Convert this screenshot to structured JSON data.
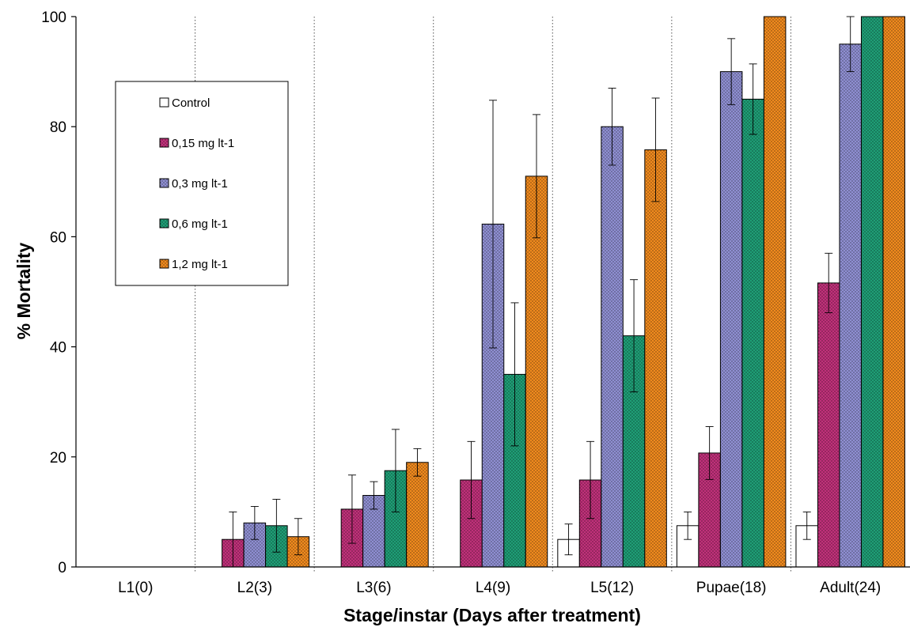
{
  "chart_data": {
    "type": "bar",
    "title": "",
    "xlabel": "Stage/instar (Days after treatment)",
    "ylabel": "% Mortality",
    "ylim": [
      0,
      100
    ],
    "yticks": [
      0,
      20,
      40,
      60,
      80,
      100
    ],
    "grid": "vertical dotted separators between categories",
    "legend_position": "upper-left",
    "categories": [
      "L1(0)",
      "L2(3)",
      "L3(6)",
      "L4(9)",
      "L5(12)",
      "Pupae(18)",
      "Adult(24)"
    ],
    "series": [
      {
        "name": "Control",
        "color": "#ffffff",
        "pattern": "none",
        "values": [
          0,
          0,
          0,
          0,
          5,
          7.5,
          7.5
        ],
        "errors": [
          0,
          0,
          0,
          0,
          2.8,
          2.5,
          2.5
        ]
      },
      {
        "name": "0,15 mg lt-1",
        "color": "#c0317a",
        "pattern": "dots",
        "values": [
          0,
          5,
          10.5,
          15.8,
          15.8,
          20.7,
          51.6
        ],
        "errors": [
          0,
          5,
          6.2,
          7,
          7,
          4.8,
          5.4
        ]
      },
      {
        "name": "0,3 mg lt-1",
        "color": "#8f8fd2",
        "pattern": "dots",
        "values": [
          0,
          8,
          13,
          62.3,
          80,
          90,
          95
        ],
        "errors": [
          0,
          3,
          2.5,
          22.5,
          7,
          6,
          5
        ]
      },
      {
        "name": "0,6 mg lt-1",
        "color": "#1f9e76",
        "pattern": "dots",
        "values": [
          0,
          7.5,
          17.5,
          35,
          42,
          85,
          100
        ],
        "errors": [
          0,
          4.8,
          7.5,
          13,
          10.2,
          6.4,
          0
        ]
      },
      {
        "name": "1,2 mg lt-1",
        "color": "#f08a1e",
        "pattern": "dots",
        "values": [
          0,
          5.5,
          19,
          71,
          75.8,
          100,
          100
        ],
        "errors": [
          0,
          3.3,
          2.5,
          11.2,
          9.4,
          0,
          0
        ]
      }
    ]
  }
}
